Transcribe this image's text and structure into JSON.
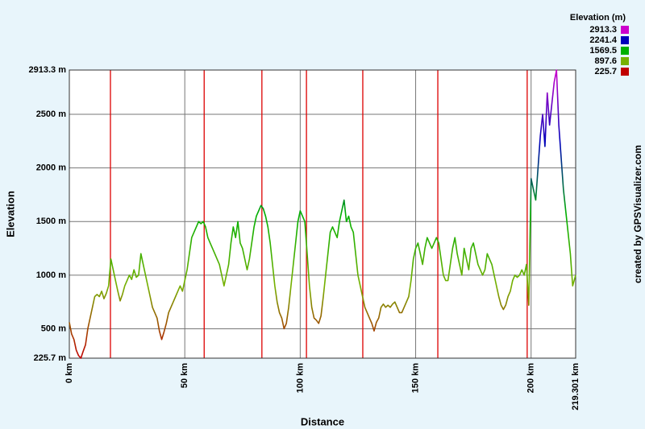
{
  "chart_data": {
    "type": "line",
    "x_label": "Distance",
    "y_label": "Elevation",
    "credit": "created by GPSVisualizer.com",
    "xlim": [
      0,
      219.301
    ],
    "ylim": [
      225.7,
      2913.3
    ],
    "xticks": [
      {
        "value": 0,
        "label": "0 km"
      },
      {
        "value": 50,
        "label": "50 km"
      },
      {
        "value": 100,
        "label": "100 km"
      },
      {
        "value": 150,
        "label": "150 km"
      },
      {
        "value": 200,
        "label": "200 km"
      },
      {
        "value": 219.301,
        "label": "219.301 km"
      }
    ],
    "yticks": [
      {
        "value": 225.7,
        "label": "225.7 m"
      },
      {
        "value": 500,
        "label": "500 m"
      },
      {
        "value": 1000,
        "label": "1000 m"
      },
      {
        "value": 1500,
        "label": "1500 m"
      },
      {
        "value": 2000,
        "label": "2000 m"
      },
      {
        "value": 2500,
        "label": "2500 m"
      },
      {
        "value": 2913.3,
        "label": "2913.3 m"
      }
    ],
    "grid": true,
    "waypoint_x": [
      17.8,
      58.4,
      83.4,
      102.7,
      127.1,
      159.6,
      198.3
    ],
    "waypoint_color": "#dd0000",
    "color_scale": {
      "title": "Elevation (m)",
      "stops": [
        {
          "value": 2913.3,
          "color": "#cc00cc"
        },
        {
          "value": 2241.4,
          "color": "#0000bb"
        },
        {
          "value": 1569.5,
          "color": "#00b000"
        },
        {
          "value": 897.6,
          "color": "#77b000"
        },
        {
          "value": 225.7,
          "color": "#c00000"
        }
      ]
    },
    "x": [
      0,
      1,
      2,
      3,
      4,
      5,
      6,
      7,
      8,
      9,
      10,
      11,
      12,
      13,
      14,
      15,
      16,
      17,
      18,
      19,
      20,
      21,
      22,
      23,
      24,
      25,
      26,
      27,
      28,
      29,
      30,
      31,
      32,
      33,
      34,
      35,
      36,
      37,
      38,
      39,
      40,
      41,
      42,
      43,
      44,
      45,
      46,
      47,
      48,
      49,
      50,
      51,
      52,
      53,
      54,
      55,
      56,
      57,
      58,
      59,
      60,
      61,
      62,
      63,
      64,
      65,
      66,
      67,
      68,
      69,
      70,
      71,
      72,
      73,
      74,
      75,
      76,
      77,
      78,
      79,
      80,
      81,
      82,
      83,
      84,
      85,
      86,
      87,
      88,
      89,
      90,
      91,
      92,
      93,
      94,
      95,
      96,
      97,
      98,
      99,
      100,
      101,
      102,
      103,
      104,
      105,
      106,
      107,
      108,
      109,
      110,
      111,
      112,
      113,
      114,
      115,
      116,
      117,
      118,
      119,
      120,
      121,
      122,
      123,
      124,
      125,
      126,
      127,
      128,
      129,
      130,
      131,
      132,
      133,
      134,
      135,
      136,
      137,
      138,
      139,
      140,
      141,
      142,
      143,
      144,
      145,
      146,
      147,
      148,
      149,
      150,
      151,
      152,
      153,
      154,
      155,
      156,
      157,
      158,
      159,
      160,
      161,
      162,
      163,
      164,
      165,
      166,
      167,
      168,
      169,
      170,
      171,
      172,
      173,
      174,
      175,
      176,
      177,
      178,
      179,
      180,
      181,
      182,
      183,
      184,
      185,
      186,
      187,
      188,
      189,
      190,
      191,
      192,
      193,
      194,
      195,
      196,
      197,
      198,
      199,
      200,
      201,
      202,
      203,
      204,
      205,
      206,
      207,
      208,
      209,
      210,
      211,
      212,
      213,
      214,
      215,
      216,
      217,
      218,
      219.301
    ],
    "values": [
      560,
      450,
      400,
      300,
      250,
      225.7,
      290,
      350,
      500,
      600,
      700,
      800,
      820,
      800,
      850,
      780,
      830,
      900,
      1150,
      1050,
      950,
      850,
      760,
      820,
      900,
      950,
      1000,
      960,
      1050,
      980,
      1000,
      1200,
      1100,
      1000,
      900,
      800,
      700,
      650,
      600,
      480,
      400,
      470,
      550,
      650,
      700,
      750,
      800,
      850,
      900,
      850,
      950,
      1050,
      1200,
      1350,
      1400,
      1450,
      1500,
      1480,
      1500,
      1450,
      1350,
      1300,
      1250,
      1200,
      1150,
      1100,
      1000,
      900,
      1000,
      1100,
      1300,
      1450,
      1350,
      1500,
      1300,
      1250,
      1150,
      1050,
      1150,
      1300,
      1450,
      1550,
      1600,
      1650,
      1620,
      1550,
      1450,
      1300,
      1100,
      900,
      750,
      650,
      600,
      500,
      550,
      700,
      900,
      1100,
      1300,
      1500,
      1600,
      1550,
      1500,
      1200,
      900,
      700,
      600,
      580,
      550,
      620,
      800,
      1000,
      1200,
      1400,
      1450,
      1400,
      1350,
      1500,
      1600,
      1700,
      1500,
      1550,
      1450,
      1400,
      1200,
      1000,
      900,
      800,
      700,
      650,
      600,
      550,
      480,
      560,
      600,
      700,
      730,
      700,
      720,
      700,
      730,
      750,
      700,
      650,
      650,
      700,
      750,
      800,
      950,
      1150,
      1250,
      1300,
      1200,
      1100,
      1250,
      1350,
      1300,
      1250,
      1300,
      1350,
      1300,
      1150,
      1000,
      950,
      950,
      1100,
      1250,
      1350,
      1200,
      1100,
      1000,
      1250,
      1150,
      1050,
      1250,
      1300,
      1200,
      1100,
      1050,
      1000,
      1050,
      1200,
      1150,
      1100,
      1000,
      900,
      800,
      720,
      680,
      720,
      800,
      850,
      950,
      1000,
      980,
      1000,
      1050,
      1000,
      1100,
      720,
      1900,
      1800,
      1700,
      2000,
      2300,
      2500,
      2200,
      2700,
      2400,
      2600,
      2800,
      2913.3,
      2400,
      2100,
      1800,
      1600,
      1400,
      1200,
      900,
      1000
    ]
  }
}
